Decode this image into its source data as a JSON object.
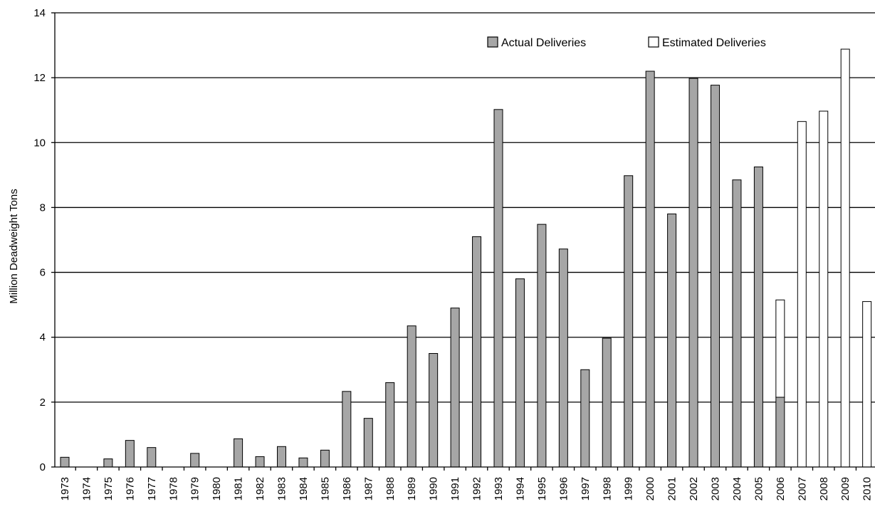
{
  "chart_data": {
    "type": "bar",
    "title": "",
    "xlabel": "",
    "ylabel": "Million Deadweight Tons",
    "ylim": [
      0,
      14
    ],
    "yticks": [
      0,
      2,
      4,
      6,
      8,
      10,
      12,
      14
    ],
    "grid": "horizontal",
    "legend_position": "top-right",
    "stacked": true,
    "categories": [
      "1973",
      "1974",
      "1975",
      "1976",
      "1977",
      "1978",
      "1979",
      "1980",
      "1981",
      "1982",
      "1983",
      "1984",
      "1985",
      "1986",
      "1987",
      "1988",
      "1989",
      "1990",
      "1991",
      "1992",
      "1993",
      "1994",
      "1995",
      "1996",
      "1997",
      "1998",
      "1999",
      "2000",
      "2001",
      "2002",
      "2003",
      "2004",
      "2005",
      "2006",
      "2007",
      "2008",
      "2009",
      "2010"
    ],
    "series": [
      {
        "name": "Actual Deliveries",
        "color": "#a6a6a6",
        "values": [
          0.3,
          0,
          0.25,
          0.82,
          0.6,
          0,
          0.42,
          0,
          0.87,
          0.32,
          0.63,
          0.28,
          0.52,
          2.33,
          1.5,
          2.6,
          4.35,
          3.5,
          4.9,
          7.1,
          11.02,
          5.8,
          7.48,
          6.72,
          3.0,
          3.97,
          8.98,
          12.2,
          7.8,
          11.98,
          11.77,
          8.85,
          9.25,
          2.15,
          0,
          0,
          0,
          0
        ]
      },
      {
        "name": "Estimated Deliveries",
        "color": "#ffffff",
        "values": [
          0,
          0,
          0,
          0,
          0,
          0,
          0,
          0,
          0,
          0,
          0,
          0,
          0,
          0,
          0,
          0,
          0,
          0,
          0,
          0,
          0,
          0,
          0,
          0,
          0,
          0,
          0,
          0,
          0,
          0,
          0,
          0,
          0,
          3.0,
          10.65,
          10.97,
          12.88,
          5.1
        ]
      }
    ]
  }
}
